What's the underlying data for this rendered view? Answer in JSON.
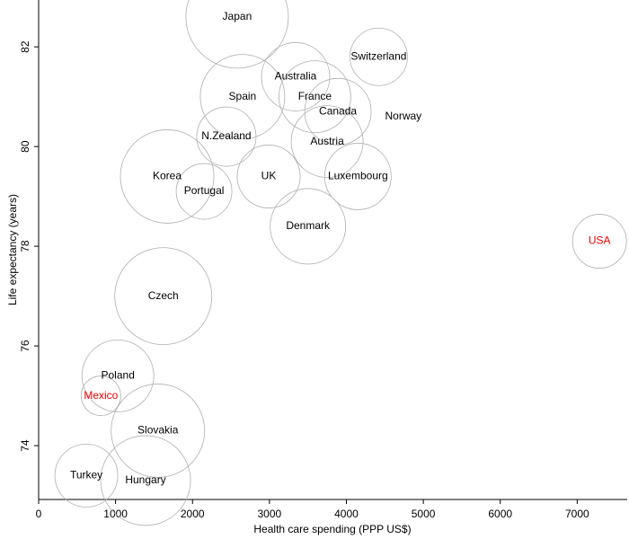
{
  "chart_data": {
    "type": "bubble",
    "xlabel": "Health care spending (PPP US$)",
    "ylabel": "Life expectancy (years)",
    "xlim": [
      0,
      7650
    ],
    "ylim": [
      72.92,
      82.94
    ],
    "xticks": [
      0,
      1000,
      2000,
      3000,
      4000,
      5000,
      6000,
      7000
    ],
    "yticks": [
      74,
      76,
      78,
      80,
      82
    ],
    "bubble_color": "#b0b0b0",
    "labels": [
      "Japan",
      "Switzerland",
      "Australia",
      "Spain",
      "France",
      "Canada",
      "Norway",
      "N.Zealand",
      "Austria",
      "Korea",
      "UK",
      "Luxembourg",
      "Portugal",
      "Denmark",
      "USA",
      "Czech",
      "Poland",
      "Mexico",
      "Slovakia",
      "Turkey",
      "Hungary"
    ],
    "x": [
      2580,
      4420,
      3340,
      2650,
      3590,
      3890,
      4740,
      2440,
      3750,
      1670,
      2990,
      4150,
      2150,
      3500,
      7290,
      1620,
      1030,
      810,
      1550,
      620,
      1390
    ],
    "y": [
      82.6,
      81.8,
      81.4,
      81.0,
      81.0,
      80.7,
      80.6,
      80.2,
      80.1,
      79.4,
      79.4,
      79.4,
      79.1,
      78.4,
      78.1,
      77.0,
      75.4,
      75.0,
      74.3,
      73.4,
      73.3
    ],
    "sizes": [
      57,
      32,
      38,
      47,
      40,
      37,
      0,
      33,
      40,
      52,
      35,
      37,
      31,
      42,
      30,
      54,
      40,
      22,
      52,
      35,
      50
    ],
    "label_colors": [
      "#000000",
      "#000000",
      "#000000",
      "#000000",
      "#000000",
      "#000000",
      "#000000",
      "#000000",
      "#000000",
      "#000000",
      "#000000",
      "#000000",
      "#000000",
      "#000000",
      "#ee0000",
      "#000000",
      "#000000",
      "#ee0000",
      "#000000",
      "#000000",
      "#000000"
    ]
  }
}
